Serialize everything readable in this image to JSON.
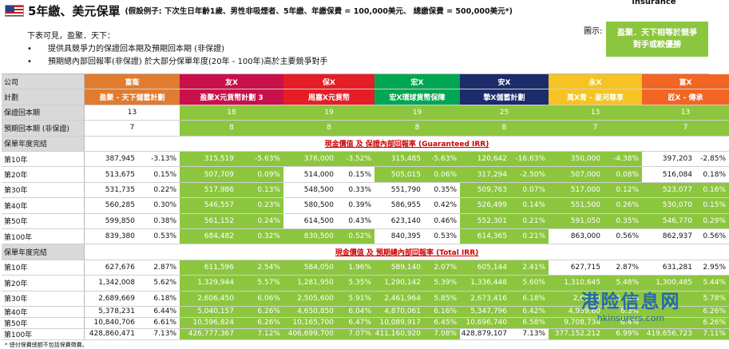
{
  "header": {
    "flag_icon": "us-flag-icon",
    "title": "5年繳、美元保單",
    "subtitle": "(假設例子: 下次生日年齡1歲、男性非吸煙者、5年繳、年繳保費 = 100,000美元、 總繳保費 = 500,000美元*)"
  },
  "intro": {
    "lead": "下表可見，盈聚．天下：",
    "bullets": [
      "提供具競爭力的保證回本期及預期回本期 (非保證)",
      "預期總內部回報率(非保證) 於大部分保單年度(20年 - 100年)高於主要競爭對手"
    ],
    "bullet_glyph": "•"
  },
  "insurance_logo_text": "insurance",
  "display_label": "圖示:",
  "legend_box": {
    "line1": "盈聚．天下相等於競爭",
    "line2": "對手或較優勝"
  },
  "colors": {
    "green": "#8cc63f",
    "white": "#ffffff"
  },
  "chart_data": {
    "type": "table",
    "row_labels": {
      "company": "公司",
      "plan": "計劃",
      "guaranteed_breakeven": "保證回本期",
      "expected_breakeven": "預期回本期 (非保證)",
      "policy_year_end": "保單年度完結"
    },
    "years": [
      "第10年",
      "第20年",
      "第30年",
      "第40年",
      "第50年",
      "第100年"
    ],
    "section_titles": {
      "guaranteed": "現金價值 及 保證內部回報率 (Guaranteed IRR)",
      "total": "現金價值 及 預期總內部回報率 (Total IRR)"
    },
    "companies": [
      {
        "company": "富衛",
        "plan": "盈聚 - 天下儲蓄計劃",
        "color": "#e07b30",
        "guaranteed_breakeven": "13",
        "expected_breakeven": "7",
        "guaranteed": [
          [
            "387,945",
            "-3.13%"
          ],
          [
            "513,675",
            "0.15%"
          ],
          [
            "531,735",
            "0.22%"
          ],
          [
            "560,285",
            "0.30%"
          ],
          [
            "599,850",
            "0.38%"
          ],
          [
            "839,380",
            "0.53%"
          ]
        ],
        "total": [
          [
            "627,676",
            "2.87%"
          ],
          [
            "1,342,008",
            "5.62%"
          ],
          [
            "2,689,669",
            "6.18%"
          ],
          [
            "5,378,231",
            "6.44%"
          ],
          [
            "10,840,706",
            "6.61%"
          ],
          [
            "428,860,471",
            "7.13%"
          ]
        ],
        "guaranteed_green": [
          [
            0,
            0
          ],
          [
            0,
            0
          ],
          [
            0,
            0
          ],
          [
            0,
            0
          ],
          [
            0,
            0
          ],
          [
            0,
            0
          ]
        ],
        "total_green": [
          [
            0,
            0
          ],
          [
            0,
            0
          ],
          [
            0,
            0
          ],
          [
            0,
            0
          ],
          [
            0,
            0
          ],
          [
            0,
            0
          ]
        ],
        "be_green": [
          0,
          0
        ]
      },
      {
        "company": "友X",
        "plan": "盈聚X元貨幣計劃 3",
        "color": "#c8104a",
        "guaranteed_breakeven": "18",
        "expected_breakeven": "8",
        "guaranteed": [
          [
            "315,519",
            "-5.63%"
          ],
          [
            "507,709",
            "0.09%"
          ],
          [
            "517,986",
            "0.13%"
          ],
          [
            "546,557",
            "0.23%"
          ],
          [
            "561,152",
            "0.24%"
          ],
          [
            "684,482",
            "0.32%"
          ]
        ],
        "total": [
          [
            "611,596",
            "2.54%"
          ],
          [
            "1,329,944",
            "5.57%"
          ],
          [
            "2,606,450",
            "6.06%"
          ],
          [
            "5,040,157",
            "6.26%"
          ],
          [
            "10,596,824",
            "6.26%"
          ],
          [
            "426,777,367",
            "7.12%"
          ]
        ],
        "guaranteed_green": [
          [
            1,
            1
          ],
          [
            1,
            1
          ],
          [
            1,
            1
          ],
          [
            1,
            1
          ],
          [
            1,
            1
          ],
          [
            1,
            1
          ]
        ],
        "total_green": [
          [
            1,
            1
          ],
          [
            1,
            1
          ],
          [
            1,
            1
          ],
          [
            1,
            1
          ],
          [
            1,
            1
          ],
          [
            1,
            1
          ]
        ],
        "be_green": [
          1,
          1
        ]
      },
      {
        "company": "保X",
        "plan": "周嘉X元貨幣",
        "color": "#e51e25",
        "guaranteed_breakeven": "19",
        "expected_breakeven": "8",
        "guaranteed": [
          [
            "376,000",
            "-3.52%"
          ],
          [
            "514,000",
            "0.15%"
          ],
          [
            "548,500",
            "0.33%"
          ],
          [
            "580,500",
            "0.39%"
          ],
          [
            "614,500",
            "0.43%"
          ],
          [
            "830,500",
            "0.52%"
          ]
        ],
        "total": [
          [
            "584,050",
            "1.96%"
          ],
          [
            "1,281,950",
            "5.35%"
          ],
          [
            "2,505,600",
            "5.91%"
          ],
          [
            "4,650,850",
            "6.04%"
          ],
          [
            "10,165,700",
            "6.47%"
          ],
          [
            "406,699,700",
            "7.07%"
          ]
        ],
        "guaranteed_green": [
          [
            1,
            1
          ],
          [
            0,
            0
          ],
          [
            0,
            0
          ],
          [
            0,
            0
          ],
          [
            0,
            0
          ],
          [
            1,
            1
          ]
        ],
        "total_green": [
          [
            1,
            1
          ],
          [
            1,
            1
          ],
          [
            1,
            1
          ],
          [
            1,
            1
          ],
          [
            1,
            1
          ],
          [
            1,
            1
          ]
        ],
        "be_green": [
          1,
          1
        ]
      },
      {
        "company": "宏X",
        "plan": "宏X環球貨幣保障",
        "color": "#00a651",
        "guaranteed_breakeven": "19",
        "expected_breakeven": "8",
        "guaranteed": [
          [
            "315,485",
            "-5.63%"
          ],
          [
            "505,015",
            "0.06%"
          ],
          [
            "551,790",
            "0.35%"
          ],
          [
            "586,955",
            "0.42%"
          ],
          [
            "623,140",
            "0.46%"
          ],
          [
            "840,395",
            "0.53%"
          ]
        ],
        "total": [
          [
            "589,140",
            "2.07%"
          ],
          [
            "1,290,142",
            "5.39%"
          ],
          [
            "2,461,964",
            "5.85%"
          ],
          [
            "4,870,061",
            "6.16%"
          ],
          [
            "10,089,917",
            "6.45%"
          ],
          [
            "411,160,920",
            "7.08%"
          ]
        ],
        "guaranteed_green": [
          [
            1,
            1
          ],
          [
            1,
            1
          ],
          [
            0,
            0
          ],
          [
            0,
            0
          ],
          [
            0,
            0
          ],
          [
            0,
            0
          ]
        ],
        "total_green": [
          [
            1,
            1
          ],
          [
            1,
            1
          ],
          [
            1,
            1
          ],
          [
            1,
            1
          ],
          [
            1,
            1
          ],
          [
            1,
            1
          ]
        ],
        "be_green": [
          1,
          1
        ]
      },
      {
        "company": "安X",
        "plan": "摯X儲蓄計劃",
        "color": "#1c2c6b",
        "guaranteed_breakeven": "25",
        "expected_breakeven": "8",
        "guaranteed": [
          [
            "120,642",
            "-16.63%"
          ],
          [
            "317,294",
            "-2.50%"
          ],
          [
            "509,763",
            "0.07%"
          ],
          [
            "526,499",
            "0.14%"
          ],
          [
            "552,301",
            "0.21%"
          ],
          [
            "614,365",
            "0.21%"
          ]
        ],
        "total": [
          [
            "605,144",
            "2.41%"
          ],
          [
            "1,336,448",
            "5.60%"
          ],
          [
            "2,673,416",
            "6.18%"
          ],
          [
            "5,347,796",
            "6.42%"
          ],
          [
            "10,696,740",
            "6.58%"
          ],
          [
            "428,879,107",
            "7.13%"
          ]
        ],
        "guaranteed_green": [
          [
            1,
            1
          ],
          [
            1,
            1
          ],
          [
            1,
            1
          ],
          [
            1,
            1
          ],
          [
            1,
            1
          ],
          [
            1,
            1
          ]
        ],
        "total_green": [
          [
            1,
            1
          ],
          [
            1,
            1
          ],
          [
            1,
            1
          ],
          [
            1,
            1
          ],
          [
            1,
            1
          ],
          [
            0,
            0
          ]
        ],
        "be_green": [
          1,
          1
        ]
      },
      {
        "company": "永X",
        "plan": "萬X青 - 星河尊享",
        "color": "#f6c322",
        "guaranteed_breakeven": "13",
        "expected_breakeven": "7",
        "guaranteed": [
          [
            "350,000",
            "-4.38%"
          ],
          [
            "507,000",
            "0.08%"
          ],
          [
            "517,000",
            "0.12%"
          ],
          [
            "551,500",
            "0.26%"
          ],
          [
            "591,050",
            "0.35%"
          ],
          [
            "863,000",
            "0.56%"
          ]
        ],
        "total": [
          [
            "627,715",
            "2.87%"
          ],
          [
            "1,310,645",
            "5.48%"
          ],
          [
            "2,658,9",
            "6.11%"
          ],
          [
            "4,939,60",
            "6.3%"
          ],
          [
            "9,708,734",
            "6.4%"
          ],
          [
            "377,152,212",
            "6.99%"
          ]
        ],
        "guaranteed_green": [
          [
            1,
            1
          ],
          [
            1,
            1
          ],
          [
            1,
            1
          ],
          [
            1,
            1
          ],
          [
            1,
            1
          ],
          [
            0,
            0
          ]
        ],
        "total_green": [
          [
            0,
            0
          ],
          [
            1,
            1
          ],
          [
            1,
            1
          ],
          [
            1,
            1
          ],
          [
            1,
            1
          ],
          [
            1,
            1
          ]
        ],
        "be_green": [
          1,
          1
        ]
      },
      {
        "company": "富X",
        "plan": "匠X - 傳承",
        "color": "#f26522",
        "guaranteed_breakeven": "13",
        "expected_breakeven": "7",
        "guaranteed": [
          [
            "397,203",
            "-2.85%"
          ],
          [
            "516,084",
            "0.18%"
          ],
          [
            "523,077",
            "0.16%"
          ],
          [
            "530,070",
            "0.15%"
          ],
          [
            "546,770",
            "0.29%"
          ],
          [
            "862,937",
            "0.56%"
          ]
        ],
        "total": [
          [
            "631,281",
            "2.95%"
          ],
          [
            "1,300,485",
            "5.44%"
          ],
          [
            "",
            "5.78%"
          ],
          [
            "",
            "6.26%"
          ],
          [
            "",
            "6.26%"
          ],
          [
            "419,656,723",
            "7.11%"
          ]
        ],
        "guaranteed_green": [
          [
            0,
            0
          ],
          [
            0,
            0
          ],
          [
            1,
            1
          ],
          [
            1,
            1
          ],
          [
            1,
            1
          ],
          [
            0,
            0
          ]
        ],
        "total_green": [
          [
            0,
            0
          ],
          [
            1,
            1
          ],
          [
            1,
            1
          ],
          [
            1,
            1
          ],
          [
            1,
            1
          ],
          [
            1,
            1
          ]
        ],
        "be_green": [
          1,
          1
        ]
      }
    ]
  },
  "footnote": "* 總付保費總額不包括保費徵費。",
  "watermark": {
    "cn": "港险信息网",
    "en": "hkinsurers.com"
  }
}
